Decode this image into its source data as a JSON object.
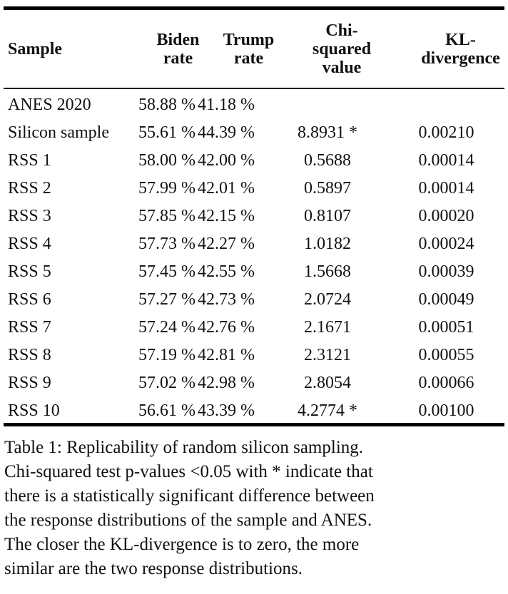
{
  "table": {
    "headers": [
      [
        "Sample"
      ],
      [
        "Biden",
        "rate"
      ],
      [
        "Trump",
        "rate"
      ],
      [
        "Chi-",
        "squared",
        "value"
      ],
      [
        "KL-",
        "divergence"
      ]
    ],
    "rows": [
      [
        "ANES 2020",
        "58.88 %",
        "41.18 %",
        "",
        ""
      ],
      [
        "Silicon sample",
        "55.61 %",
        "44.39 %",
        "8.8931 *",
        "0.00210"
      ],
      [
        "RSS 1",
        "58.00 %",
        "42.00 %",
        "0.5688",
        "0.00014"
      ],
      [
        "RSS 2",
        "57.99 %",
        "42.01 %",
        "0.5897",
        "0.00014"
      ],
      [
        "RSS 3",
        "57.85 %",
        "42.15 %",
        "0.8107",
        "0.00020"
      ],
      [
        "RSS 4",
        "57.73 %",
        "42.27 %",
        "1.0182",
        "0.00024"
      ],
      [
        "RSS 5",
        "57.45 %",
        "42.55 %",
        "1.5668",
        "0.00039"
      ],
      [
        "RSS 6",
        "57.27 %",
        "42.73 %",
        "2.0724",
        "0.00049"
      ],
      [
        "RSS 7",
        "57.24 %",
        "42.76 %",
        "2.1671",
        "0.00051"
      ],
      [
        "RSS 8",
        "57.19 %",
        "42.81 %",
        "2.3121",
        "0.00055"
      ],
      [
        "RSS 9",
        "57.02 %",
        "42.98 %",
        "2.8054",
        "0.00066"
      ],
      [
        "RSS 10",
        "56.61 %",
        "43.39 %",
        "4.2774 *",
        "0.00100"
      ]
    ]
  },
  "caption": {
    "lines": [
      "Table 1: Replicability of random silicon sampling.",
      "Chi-squared test p-values <0.05 with * indicate that",
      "there is a statistically significant difference between",
      "the response distributions of the sample and ANES.",
      "The closer the KL-divergence is to zero, the more",
      "similar are the two response distributions."
    ]
  }
}
